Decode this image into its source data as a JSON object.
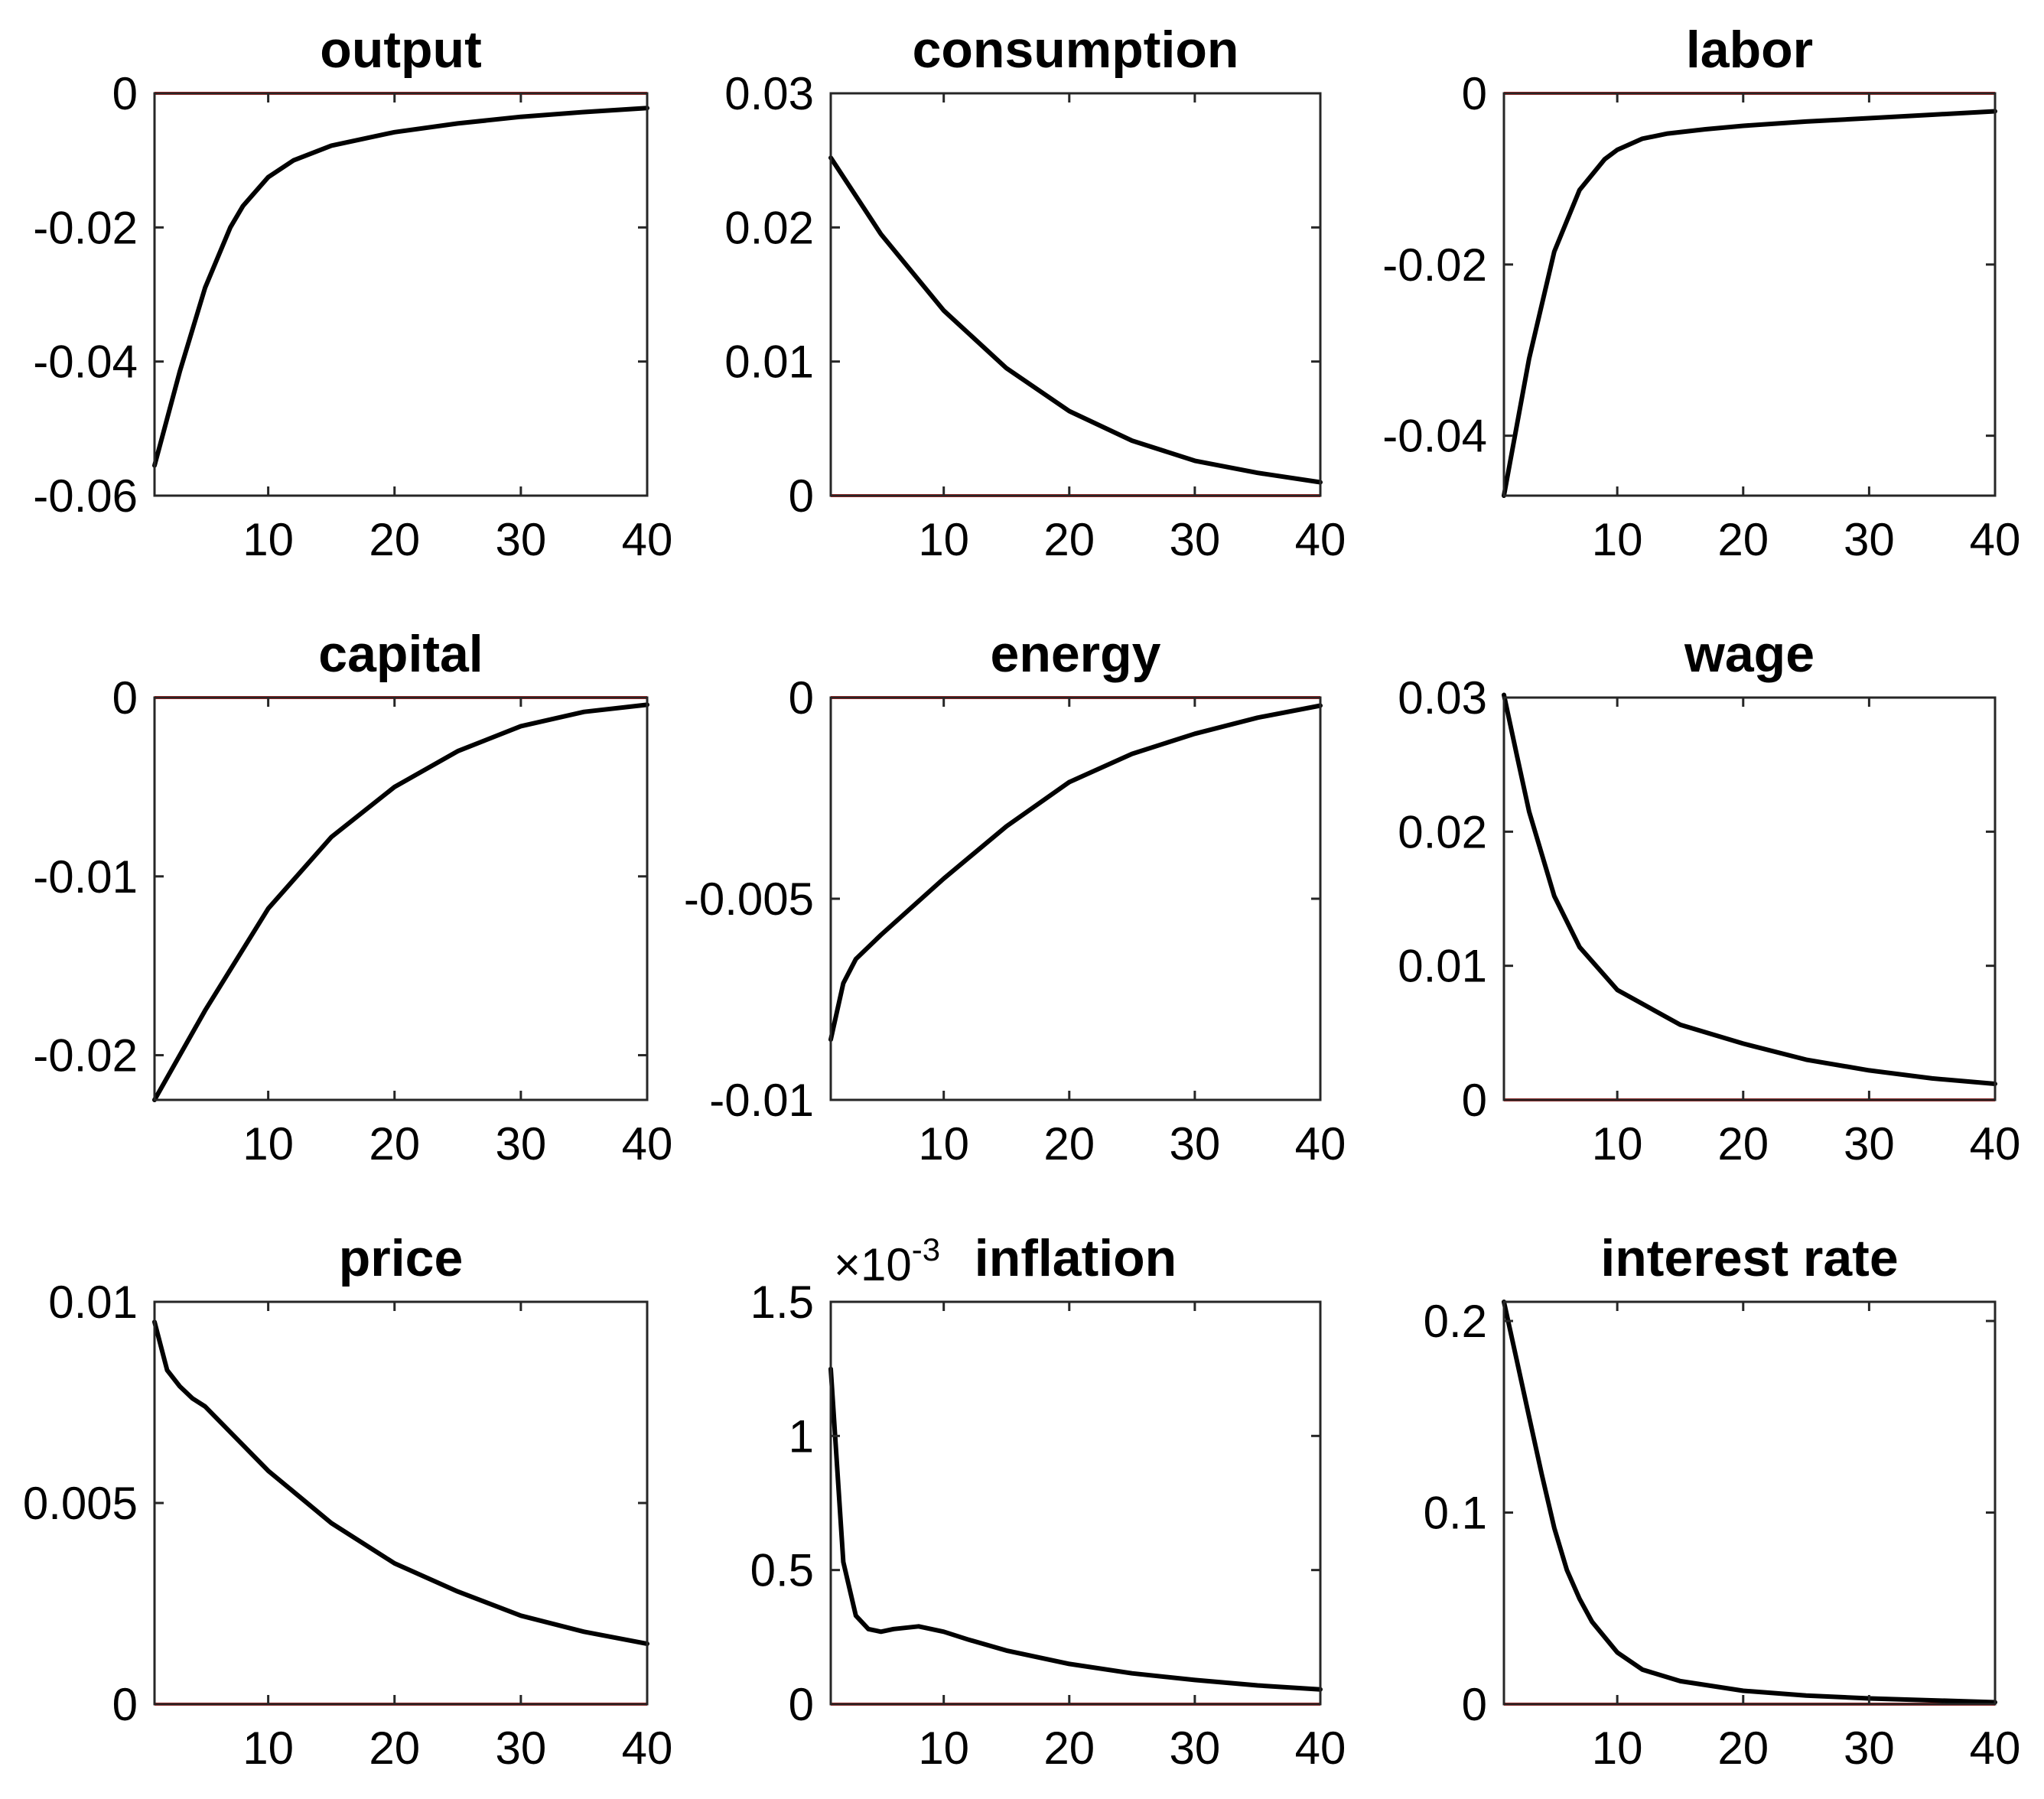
{
  "chart_data": [
    {
      "type": "line",
      "title": "output",
      "xlim": [
        1,
        40
      ],
      "ylim": [
        -0.06,
        0
      ],
      "xticks": [
        "10",
        "20",
        "30",
        "40"
      ],
      "yticks": [
        "0",
        "-0.02",
        "-0.04",
        "-0.06"
      ],
      "ytick_values": [
        0,
        -0.02,
        -0.04,
        -0.06
      ],
      "reference_line": 0,
      "x": [
        1,
        3,
        5,
        7,
        8,
        10,
        12,
        15,
        20,
        25,
        30,
        35,
        40
      ],
      "y": [
        -0.0555,
        -0.0415,
        -0.029,
        -0.02,
        -0.0168,
        -0.0125,
        -0.01,
        -0.0078,
        -0.0058,
        -0.0045,
        -0.0035,
        -0.0028,
        -0.0022
      ]
    },
    {
      "type": "line",
      "title": "consumption",
      "xlim": [
        1,
        40
      ],
      "ylim": [
        0,
        0.03
      ],
      "xticks": [
        "10",
        "20",
        "30",
        "40"
      ],
      "yticks": [
        "0.03",
        "0.02",
        "0.01",
        "0"
      ],
      "ytick_values": [
        0.03,
        0.02,
        0.01,
        0
      ],
      "reference_line": 0,
      "x": [
        1,
        5,
        10,
        15,
        20,
        25,
        30,
        35,
        40
      ],
      "y": [
        0.0252,
        0.0195,
        0.0138,
        0.0095,
        0.0063,
        0.0041,
        0.0026,
        0.0017,
        0.001
      ]
    },
    {
      "type": "line",
      "title": "labor",
      "xlim": [
        1,
        40
      ],
      "ylim": [
        -0.047,
        0
      ],
      "xticks": [
        "10",
        "20",
        "30",
        "40"
      ],
      "yticks": [
        "0",
        "-0.02",
        "-0.04"
      ],
      "ytick_values": [
        0,
        -0.02,
        -0.04
      ],
      "reference_line": 0,
      "x": [
        1,
        3,
        5,
        7,
        9,
        10,
        12,
        14,
        17,
        20,
        25,
        30,
        35,
        40
      ],
      "y": [
        -0.047,
        -0.031,
        -0.0185,
        -0.0113,
        -0.0077,
        -0.0066,
        -0.0053,
        -0.0047,
        -0.0042,
        -0.0038,
        -0.0033,
        -0.0029,
        -0.0025,
        -0.0021
      ]
    },
    {
      "type": "line",
      "title": "capital",
      "xlim": [
        1,
        40
      ],
      "ylim": [
        -0.0225,
        0
      ],
      "xticks": [
        "10",
        "20",
        "30",
        "40"
      ],
      "yticks": [
        "0",
        "-0.01",
        "-0.02"
      ],
      "ytick_values": [
        0,
        -0.01,
        -0.02
      ],
      "reference_line": 0,
      "x": [
        1,
        5,
        10,
        15,
        20,
        25,
        30,
        35,
        40
      ],
      "y": [
        -0.0225,
        -0.0175,
        -0.0118,
        -0.0078,
        -0.005,
        -0.003,
        -0.0016,
        -0.0008,
        -0.0004
      ]
    },
    {
      "type": "line",
      "title": "energy",
      "xlim": [
        1,
        40
      ],
      "ylim": [
        -0.01,
        0
      ],
      "xticks": [
        "10",
        "20",
        "30",
        "40"
      ],
      "yticks": [
        "0",
        "-0.005",
        "-0.01"
      ],
      "ytick_values": [
        0,
        -0.005,
        -0.01
      ],
      "reference_line": 0,
      "x": [
        1,
        2,
        3,
        5,
        10,
        15,
        20,
        25,
        30,
        35,
        40
      ],
      "y": [
        -0.0085,
        -0.0071,
        -0.0065,
        -0.0059,
        -0.0045,
        -0.0032,
        -0.0021,
        -0.0014,
        -0.0009,
        -0.0005,
        -0.0002
      ]
    },
    {
      "type": "line",
      "title": "wage",
      "xlim": [
        1,
        40
      ],
      "ylim": [
        0,
        0.03
      ],
      "xticks": [
        "10",
        "20",
        "30",
        "40"
      ],
      "yticks": [
        "0.03",
        "0.02",
        "0.01",
        "0"
      ],
      "ytick_values": [
        0.03,
        0.02,
        0.01,
        0
      ],
      "reference_line": 0,
      "x": [
        1,
        2,
        3,
        5,
        7,
        10,
        15,
        20,
        25,
        30,
        35,
        40
      ],
      "y": [
        0.0302,
        0.0258,
        0.0215,
        0.0152,
        0.0114,
        0.0082,
        0.0056,
        0.0042,
        0.003,
        0.0022,
        0.0016,
        0.0012
      ]
    },
    {
      "type": "line",
      "title": "price",
      "xlim": [
        1,
        40
      ],
      "ylim": [
        0,
        0.01
      ],
      "xticks": [
        "10",
        "20",
        "30",
        "40"
      ],
      "yticks": [
        "0.01",
        "0.005",
        "0"
      ],
      "ytick_values": [
        0.01,
        0.005,
        0
      ],
      "reference_line": 0,
      "x": [
        1,
        2,
        3,
        4,
        5,
        10,
        15,
        20,
        25,
        30,
        35,
        40
      ],
      "y": [
        0.0095,
        0.0083,
        0.0079,
        0.0076,
        0.0074,
        0.0058,
        0.0045,
        0.0035,
        0.0028,
        0.0022,
        0.0018,
        0.0015
      ]
    },
    {
      "type": "line",
      "title": "inflation",
      "scale_exponent": "-3",
      "scale_prefix": "×10",
      "xlim": [
        1,
        40
      ],
      "ylim": [
        0,
        1.5
      ],
      "xticks": [
        "10",
        "20",
        "30",
        "40"
      ],
      "yticks": [
        "1.5",
        "1",
        "0.5",
        "0"
      ],
      "ytick_values": [
        1.5,
        1,
        0.5,
        0
      ],
      "reference_line": 0,
      "x": [
        1,
        2,
        3,
        4,
        5,
        6,
        8,
        10,
        12,
        15,
        20,
        25,
        30,
        35,
        40
      ],
      "y": [
        1.25,
        0.53,
        0.33,
        0.28,
        0.27,
        0.28,
        0.29,
        0.27,
        0.24,
        0.2,
        0.15,
        0.115,
        0.09,
        0.07,
        0.055
      ]
    },
    {
      "type": "line",
      "title": "interest rate",
      "xlim": [
        1,
        40
      ],
      "ylim": [
        0,
        0.21
      ],
      "xticks": [
        "10",
        "20",
        "30",
        "40"
      ],
      "yticks": [
        "0.2",
        "0.1",
        "0"
      ],
      "ytick_values": [
        0.2,
        0.1,
        0
      ],
      "reference_line": 0,
      "x": [
        1,
        2,
        3,
        4,
        5,
        6,
        7,
        8,
        10,
        12,
        15,
        20,
        25,
        30,
        40
      ],
      "y": [
        0.21,
        0.18,
        0.15,
        0.12,
        0.092,
        0.07,
        0.055,
        0.043,
        0.027,
        0.018,
        0.012,
        0.007,
        0.0045,
        0.003,
        0.001
      ]
    }
  ]
}
